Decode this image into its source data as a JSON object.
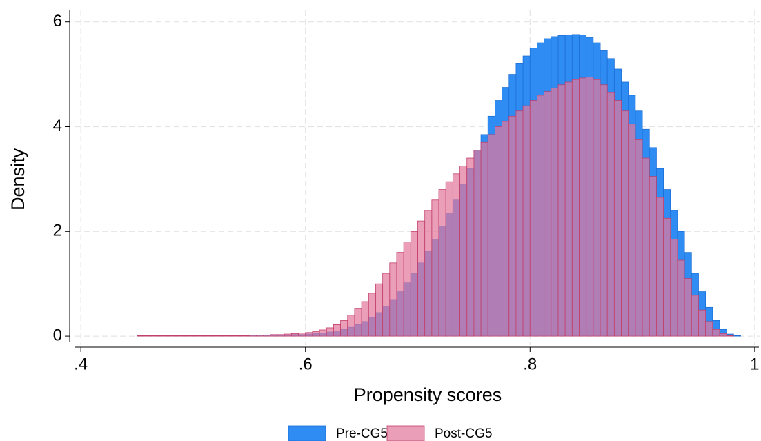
{
  "chart_data": {
    "type": "histogram",
    "x_label": "Propensity scores",
    "y_label": "Density",
    "bins": [
      0.45,
      0.45625,
      0.4625,
      0.46875,
      0.475,
      0.48125,
      0.4875,
      0.49375,
      0.5,
      0.50625,
      0.5125,
      0.51875,
      0.525,
      0.53125,
      0.5375,
      0.54375,
      0.55,
      0.55625,
      0.5625,
      0.56875,
      0.575,
      0.58125,
      0.5875,
      0.59375,
      0.6,
      0.60625,
      0.6125,
      0.61875,
      0.625,
      0.63125,
      0.6375,
      0.64375,
      0.65,
      0.65625,
      0.6625,
      0.66875,
      0.675,
      0.68125,
      0.6875,
      0.69375,
      0.7,
      0.70625,
      0.7125,
      0.71875,
      0.725,
      0.73125,
      0.7375,
      0.74375,
      0.75,
      0.75625,
      0.7625,
      0.76875,
      0.775,
      0.78125,
      0.7875,
      0.79375,
      0.8,
      0.80625,
      0.8125,
      0.81875,
      0.825,
      0.83125,
      0.8375,
      0.84375,
      0.85,
      0.85625,
      0.8625,
      0.86875,
      0.875,
      0.88125,
      0.8875,
      0.89375,
      0.9,
      0.90625,
      0.9125,
      0.91875,
      0.925,
      0.93125,
      0.9375,
      0.94375,
      0.95,
      0.95625,
      0.9625,
      0.96875,
      0.975,
      0.98125,
      0.9875
    ],
    "series": [
      {
        "name": "Pre-CG5",
        "color": "#2f8cf2",
        "edge": "#1c6fd6",
        "opacity": 1,
        "values": [
          0,
          0,
          0,
          0.01,
          0.01,
          0.01,
          0.01,
          0.01,
          0.01,
          0.01,
          0.01,
          0.01,
          0.01,
          0.01,
          0.01,
          0.01,
          0.01,
          0.01,
          0.01,
          0.02,
          0.02,
          0.02,
          0.03,
          0.03,
          0.04,
          0.05,
          0.06,
          0.08,
          0.1,
          0.13,
          0.17,
          0.22,
          0.28,
          0.36,
          0.45,
          0.56,
          0.7,
          0.85,
          1.02,
          1.2,
          1.4,
          1.62,
          1.85,
          2.1,
          2.35,
          2.6,
          2.9,
          3.2,
          3.55,
          3.85,
          4.2,
          4.5,
          4.75,
          5.0,
          5.2,
          5.35,
          5.5,
          5.6,
          5.68,
          5.72,
          5.74,
          5.75,
          5.76,
          5.75,
          5.7,
          5.6,
          5.45,
          5.3,
          5.1,
          4.85,
          4.6,
          4.3,
          3.95,
          3.6,
          3.2,
          2.8,
          2.4,
          2.0,
          1.6,
          1.2,
          0.85,
          0.55,
          0.3,
          0.13,
          0.04,
          0.01
        ]
      },
      {
        "name": "Post-CG5",
        "color": "#e2789c",
        "edge": "#c2406c",
        "opacity": 0.72,
        "values": [
          0.01,
          0.01,
          0.01,
          0.01,
          0.01,
          0.01,
          0.01,
          0.01,
          0.01,
          0.01,
          0.01,
          0.01,
          0.01,
          0.01,
          0.01,
          0.01,
          0.02,
          0.02,
          0.02,
          0.03,
          0.03,
          0.04,
          0.05,
          0.06,
          0.07,
          0.09,
          0.12,
          0.16,
          0.22,
          0.3,
          0.4,
          0.52,
          0.66,
          0.82,
          1.0,
          1.2,
          1.4,
          1.6,
          1.8,
          2.0,
          2.2,
          2.4,
          2.6,
          2.8,
          2.95,
          3.1,
          3.25,
          3.4,
          3.55,
          3.7,
          3.85,
          4.0,
          4.1,
          4.2,
          4.3,
          4.4,
          4.5,
          4.6,
          4.67,
          4.74,
          4.8,
          4.85,
          4.9,
          4.93,
          4.95,
          4.9,
          4.8,
          4.65,
          4.5,
          4.3,
          4.05,
          3.75,
          3.4,
          3.05,
          2.65,
          2.25,
          1.85,
          1.45,
          1.1,
          0.78,
          0.5,
          0.28,
          0.13,
          0.05,
          0.01,
          0
        ]
      }
    ],
    "xlim": [
      0.395,
      1.005
    ],
    "ylim": [
      -0.17,
      6.22
    ],
    "xticks": [
      {
        "value": 0.4,
        "label": ".4"
      },
      {
        "value": 0.6,
        "label": ".6"
      },
      {
        "value": 0.8,
        "label": ".8"
      },
      1
    ],
    "yticks": [
      0,
      2,
      4,
      6
    ],
    "grid": true,
    "legend": "bottom"
  }
}
